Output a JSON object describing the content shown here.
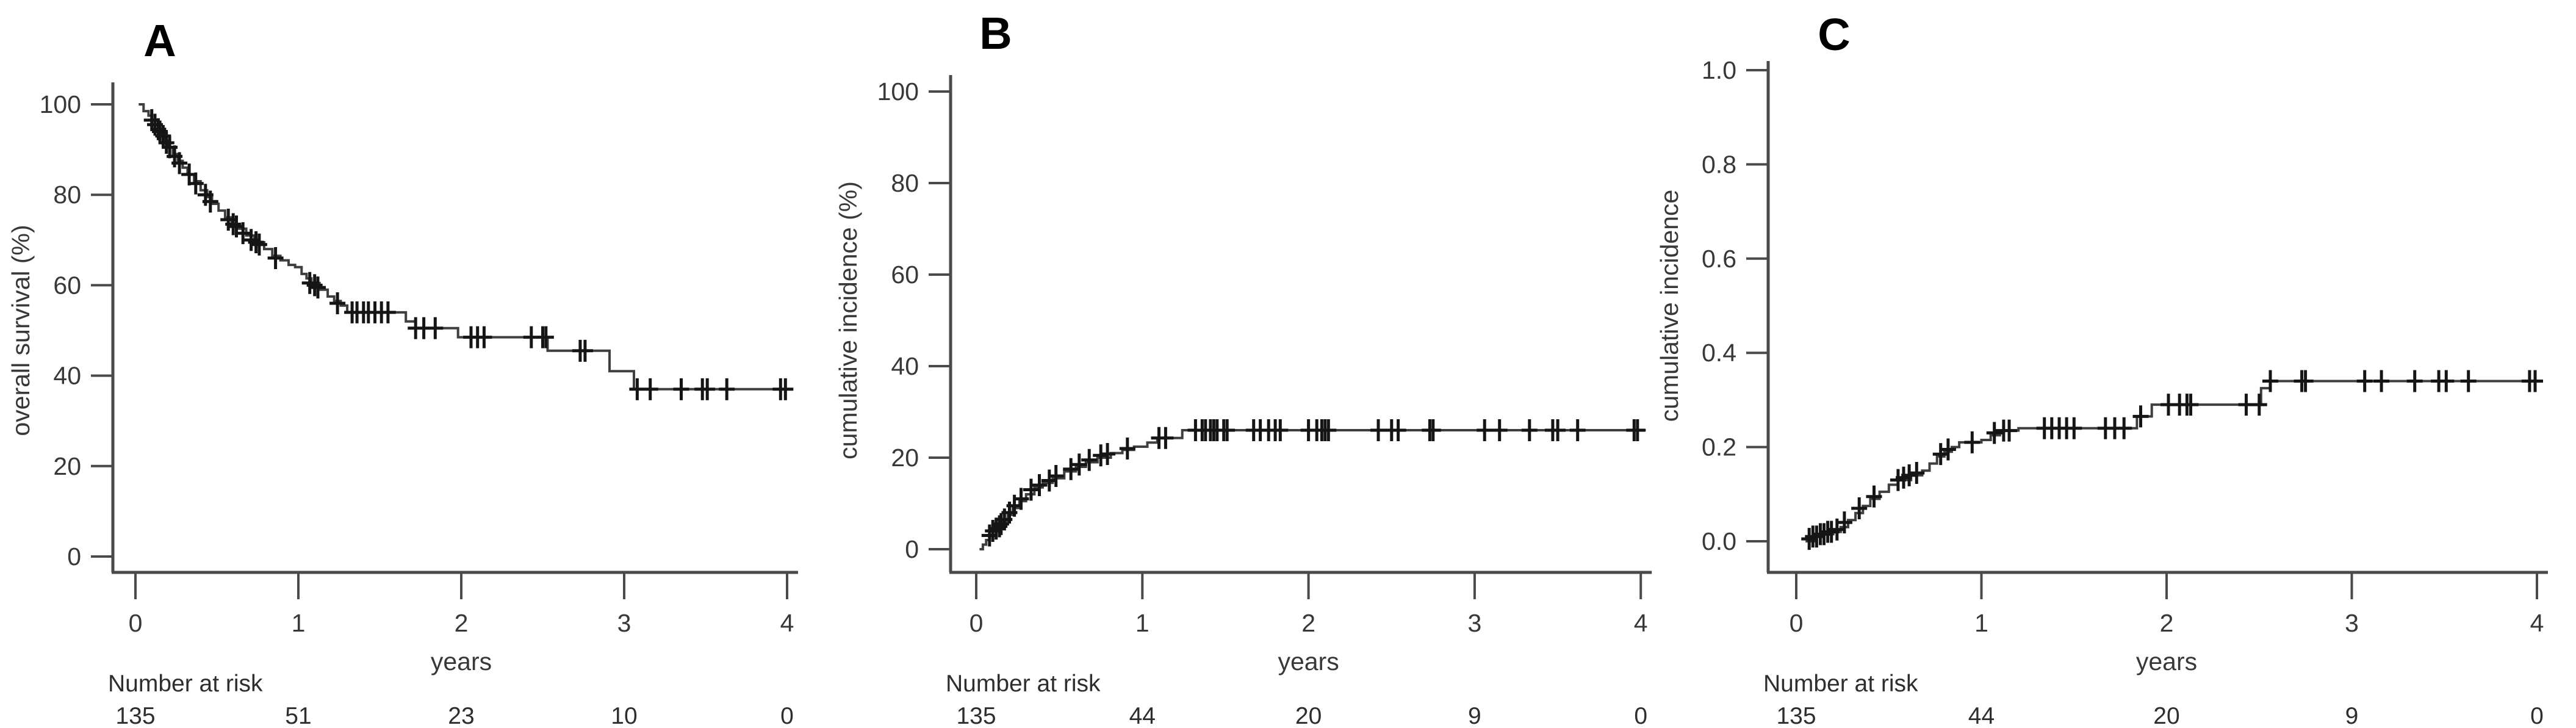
{
  "figure": {
    "background": "#ffffff",
    "curve_color": "#3f3f3f",
    "censor_color": "#151515",
    "axis_color": "#4a4a4a"
  },
  "chart_data": [
    {
      "type": "line",
      "panel_label": "A",
      "ylabel": "overall survival (%)",
      "xlabel": "years",
      "xlim": [
        0,
        4.1
      ],
      "ylim": [
        0,
        100
      ],
      "x_ticks": [
        "0",
        "1",
        "2",
        "3",
        "4"
      ],
      "y_ticks": [
        {
          "v": 100,
          "label": "100"
        },
        {
          "v": 80,
          "label": "80"
        },
        {
          "v": 60,
          "label": "60"
        },
        {
          "v": 40,
          "label": "40"
        },
        {
          "v": 20,
          "label": "20"
        },
        {
          "v": 0,
          "label": "0"
        }
      ],
      "grid": false,
      "legend": "none",
      "series": [
        {
          "name": "overall survival",
          "step_points": [
            [
              0.02,
              100
            ],
            [
              0.05,
              98.5
            ],
            [
              0.08,
              97.5
            ],
            [
              0.1,
              96.5
            ],
            [
              0.12,
              95.5
            ],
            [
              0.14,
              94.5
            ],
            [
              0.16,
              93.5
            ],
            [
              0.18,
              92
            ],
            [
              0.2,
              90.5
            ],
            [
              0.23,
              89
            ],
            [
              0.26,
              87.5
            ],
            [
              0.29,
              86
            ],
            [
              0.32,
              84.5
            ],
            [
              0.36,
              83
            ],
            [
              0.4,
              81
            ],
            [
              0.44,
              79.5
            ],
            [
              0.47,
              78
            ],
            [
              0.51,
              76.5
            ],
            [
              0.55,
              75
            ],
            [
              0.59,
              73.5
            ],
            [
              0.63,
              72.5
            ],
            [
              0.68,
              71
            ],
            [
              0.73,
              69.5
            ],
            [
              0.79,
              68
            ],
            [
              0.84,
              66.5
            ],
            [
              0.89,
              65.5
            ],
            [
              0.94,
              64.5
            ],
            [
              0.98,
              64
            ],
            [
              1.02,
              62.5
            ],
            [
              1.05,
              61.5
            ],
            [
              1.08,
              60.5
            ],
            [
              1.13,
              59
            ],
            [
              1.18,
              57.5
            ],
            [
              1.22,
              56.5
            ],
            [
              1.26,
              55.5
            ],
            [
              1.3,
              54
            ],
            [
              1.66,
              52
            ],
            [
              1.72,
              50.5
            ],
            [
              1.98,
              48.5
            ],
            [
              2.53,
              45.5
            ],
            [
              2.91,
              41
            ],
            [
              3.06,
              37
            ],
            [
              4.03,
              37
            ]
          ]
        }
      ],
      "censor_marks": [
        [
          0.1,
          96.5
        ],
        [
          0.12,
          95.5
        ],
        [
          0.14,
          94.5
        ],
        [
          0.15,
          94
        ],
        [
          0.17,
          93
        ],
        [
          0.19,
          91.5
        ],
        [
          0.21,
          90.5
        ],
        [
          0.24,
          88.5
        ],
        [
          0.27,
          87
        ],
        [
          0.33,
          84.5
        ],
        [
          0.37,
          82.5
        ],
        [
          0.43,
          80
        ],
        [
          0.46,
          78.5
        ],
        [
          0.57,
          74.5
        ],
        [
          0.6,
          73.5
        ],
        [
          0.62,
          73
        ],
        [
          0.66,
          71.5
        ],
        [
          0.71,
          70
        ],
        [
          0.74,
          69.5
        ],
        [
          0.76,
          69
        ],
        [
          0.86,
          66
        ],
        [
          1.07,
          60.5
        ],
        [
          1.1,
          60
        ],
        [
          1.12,
          59.5
        ],
        [
          1.24,
          56
        ],
        [
          1.33,
          54
        ],
        [
          1.36,
          54
        ],
        [
          1.4,
          54
        ],
        [
          1.43,
          54
        ],
        [
          1.47,
          54
        ],
        [
          1.51,
          54
        ],
        [
          1.55,
          54
        ],
        [
          1.72,
          50.5
        ],
        [
          1.77,
          50.5
        ],
        [
          1.84,
          50.5
        ],
        [
          2.06,
          48.5
        ],
        [
          2.1,
          48.5
        ],
        [
          2.14,
          48.5
        ],
        [
          2.43,
          48.5
        ],
        [
          2.5,
          48.5
        ],
        [
          2.52,
          48.5
        ],
        [
          2.73,
          45.5
        ],
        [
          2.76,
          45.5
        ],
        [
          3.08,
          37
        ],
        [
          3.16,
          37
        ],
        [
          3.35,
          37
        ],
        [
          3.48,
          37
        ],
        [
          3.51,
          37
        ],
        [
          3.63,
          37
        ],
        [
          3.96,
          37
        ],
        [
          3.99,
          37
        ]
      ],
      "number_at_risk": {
        "label": "Number at risk",
        "values": [
          "135",
          "51",
          "23",
          "10",
          "0"
        ]
      }
    },
    {
      "type": "line",
      "panel_label": "B",
      "ylabel": "cumulative incidence (%)",
      "xlabel": "years",
      "xlim": [
        0,
        4.1
      ],
      "ylim": [
        0,
        100
      ],
      "x_ticks": [
        "0",
        "1",
        "2",
        "3",
        "4"
      ],
      "y_ticks": [
        {
          "v": 100,
          "label": "100"
        },
        {
          "v": 80,
          "label": "80"
        },
        {
          "v": 60,
          "label": "60"
        },
        {
          "v": 40,
          "label": "40"
        },
        {
          "v": 20,
          "label": "20"
        },
        {
          "v": 0,
          "label": "0"
        }
      ],
      "grid": false,
      "legend": "none",
      "series": [
        {
          "name": "cumulative incidence",
          "step_points": [
            [
              0.02,
              0
            ],
            [
              0.04,
              1
            ],
            [
              0.06,
              2
            ],
            [
              0.08,
              3
            ],
            [
              0.1,
              4
            ],
            [
              0.13,
              5
            ],
            [
              0.16,
              6
            ],
            [
              0.19,
              7.5
            ],
            [
              0.22,
              9
            ],
            [
              0.26,
              10.5
            ],
            [
              0.3,
              12
            ],
            [
              0.35,
              13.5
            ],
            [
              0.4,
              14.5
            ],
            [
              0.46,
              15.5
            ],
            [
              0.53,
              17
            ],
            [
              0.6,
              18
            ],
            [
              0.66,
              19
            ],
            [
              0.73,
              20
            ],
            [
              0.81,
              21
            ],
            [
              0.88,
              21.7
            ],
            [
              0.95,
              22.4
            ],
            [
              1.03,
              23.3
            ],
            [
              1.09,
              24.3
            ],
            [
              1.24,
              26
            ],
            [
              4.03,
              26
            ]
          ]
        }
      ],
      "censor_marks": [
        [
          0.08,
          3
        ],
        [
          0.1,
          4
        ],
        [
          0.12,
          4.5
        ],
        [
          0.14,
          5
        ],
        [
          0.15,
          5.5
        ],
        [
          0.17,
          6.5
        ],
        [
          0.2,
          8
        ],
        [
          0.23,
          9.5
        ],
        [
          0.27,
          11
        ],
        [
          0.33,
          13
        ],
        [
          0.38,
          14
        ],
        [
          0.44,
          15
        ],
        [
          0.48,
          16
        ],
        [
          0.57,
          17.5
        ],
        [
          0.62,
          18.5
        ],
        [
          0.68,
          19.5
        ],
        [
          0.75,
          20.5
        ],
        [
          0.79,
          20.8
        ],
        [
          0.91,
          22
        ],
        [
          1.1,
          24.3
        ],
        [
          1.14,
          24.3
        ],
        [
          1.32,
          26
        ],
        [
          1.36,
          26
        ],
        [
          1.38,
          26
        ],
        [
          1.41,
          26
        ],
        [
          1.43,
          26
        ],
        [
          1.45,
          26
        ],
        [
          1.49,
          26
        ],
        [
          1.51,
          26
        ],
        [
          1.67,
          26
        ],
        [
          1.71,
          26
        ],
        [
          1.76,
          26
        ],
        [
          1.8,
          26
        ],
        [
          1.83,
          26
        ],
        [
          2.0,
          26
        ],
        [
          2.05,
          26
        ],
        [
          2.08,
          26
        ],
        [
          2.1,
          26
        ],
        [
          2.12,
          26
        ],
        [
          2.42,
          26
        ],
        [
          2.5,
          26
        ],
        [
          2.54,
          26
        ],
        [
          2.73,
          26
        ],
        [
          2.75,
          26
        ],
        [
          3.06,
          26
        ],
        [
          3.15,
          26
        ],
        [
          3.33,
          26
        ],
        [
          3.47,
          26
        ],
        [
          3.5,
          26
        ],
        [
          3.62,
          26
        ],
        [
          3.96,
          26
        ],
        [
          3.98,
          26
        ]
      ],
      "number_at_risk": {
        "label": "Number at risk",
        "values": [
          "135",
          "44",
          "20",
          "9",
          "0"
        ]
      }
    },
    {
      "type": "line",
      "panel_label": "C",
      "ylabel": "cumulative incidence",
      "xlabel": "years",
      "xlim": [
        0,
        4.1
      ],
      "ylim": [
        0,
        1
      ],
      "x_ticks": [
        "0",
        "1",
        "2",
        "3",
        "4"
      ],
      "y_ticks": [
        {
          "v": 1.0,
          "label": "1.0"
        },
        {
          "v": 0.8,
          "label": "0.8"
        },
        {
          "v": 0.6,
          "label": "0.6"
        },
        {
          "v": 0.4,
          "label": "0.4"
        },
        {
          "v": 0.2,
          "label": "0.2"
        },
        {
          "v": 0.0,
          "label": "0.0"
        }
      ],
      "grid": false,
      "legend": "none",
      "series": [
        {
          "name": "cumulative incidence",
          "step_points": [
            [
              0.05,
              0
            ],
            [
              0.1,
              0.01
            ],
            [
              0.15,
              0.015
            ],
            [
              0.2,
              0.02
            ],
            [
              0.24,
              0.03
            ],
            [
              0.28,
              0.045
            ],
            [
              0.32,
              0.06
            ],
            [
              0.36,
              0.075
            ],
            [
              0.4,
              0.09
            ],
            [
              0.45,
              0.105
            ],
            [
              0.5,
              0.12
            ],
            [
              0.55,
              0.13
            ],
            [
              0.62,
              0.14
            ],
            [
              0.68,
              0.15
            ],
            [
              0.72,
              0.165
            ],
            [
              0.76,
              0.18
            ],
            [
              0.8,
              0.19
            ],
            [
              0.84,
              0.2
            ],
            [
              0.88,
              0.21
            ],
            [
              1.0,
              0.215
            ],
            [
              1.05,
              0.225
            ],
            [
              1.1,
              0.235
            ],
            [
              1.2,
              0.24
            ],
            [
              1.84,
              0.265
            ],
            [
              1.92,
              0.29
            ],
            [
              2.51,
              0.325
            ],
            [
              2.56,
              0.34
            ],
            [
              4.03,
              0.34
            ]
          ]
        }
      ],
      "censor_marks": [
        [
          0.07,
          0.005
        ],
        [
          0.09,
          0.01
        ],
        [
          0.11,
          0.01
        ],
        [
          0.13,
          0.015
        ],
        [
          0.15,
          0.015
        ],
        [
          0.17,
          0.02
        ],
        [
          0.19,
          0.02
        ],
        [
          0.22,
          0.025
        ],
        [
          0.26,
          0.04
        ],
        [
          0.34,
          0.07
        ],
        [
          0.42,
          0.095
        ],
        [
          0.55,
          0.13
        ],
        [
          0.58,
          0.135
        ],
        [
          0.61,
          0.14
        ],
        [
          0.65,
          0.145
        ],
        [
          0.78,
          0.185
        ],
        [
          0.82,
          0.195
        ],
        [
          0.95,
          0.21
        ],
        [
          1.07,
          0.23
        ],
        [
          1.12,
          0.235
        ],
        [
          1.15,
          0.235
        ],
        [
          1.34,
          0.24
        ],
        [
          1.38,
          0.24
        ],
        [
          1.42,
          0.24
        ],
        [
          1.46,
          0.24
        ],
        [
          1.5,
          0.24
        ],
        [
          1.67,
          0.24
        ],
        [
          1.72,
          0.24
        ],
        [
          1.77,
          0.24
        ],
        [
          1.86,
          0.265
        ],
        [
          2.01,
          0.29
        ],
        [
          2.07,
          0.29
        ],
        [
          2.11,
          0.29
        ],
        [
          2.13,
          0.29
        ],
        [
          2.43,
          0.29
        ],
        [
          2.5,
          0.29
        ],
        [
          2.56,
          0.34
        ],
        [
          2.73,
          0.34
        ],
        [
          2.75,
          0.34
        ],
        [
          3.07,
          0.34
        ],
        [
          3.16,
          0.34
        ],
        [
          3.34,
          0.34
        ],
        [
          3.47,
          0.34
        ],
        [
          3.51,
          0.34
        ],
        [
          3.63,
          0.34
        ],
        [
          3.96,
          0.34
        ],
        [
          3.99,
          0.34
        ]
      ],
      "number_at_risk": {
        "label": "Number at risk",
        "values": [
          "135",
          "44",
          "20",
          "9",
          "0"
        ]
      }
    }
  ]
}
